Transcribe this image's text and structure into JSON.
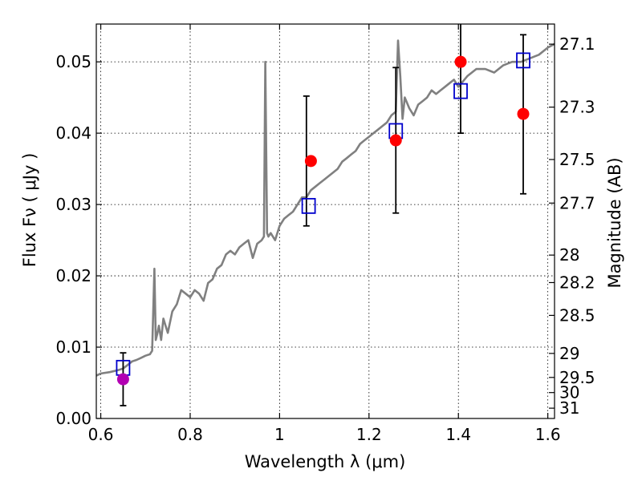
{
  "chart_data": {
    "type": "scatter",
    "title": "",
    "xlabel": "Wavelength  λ (μm)",
    "ylabel": "Flux  Fν  ( μJy )",
    "ylabel_right": "Magnitude (AB)",
    "xlim": [
      0.59,
      1.615
    ],
    "ylim": [
      0.0,
      0.0553
    ],
    "x_ticks": [
      0.6,
      0.8,
      1.0,
      1.2,
      1.4,
      1.6
    ],
    "x_tick_labels": [
      "0.6",
      "0.8",
      "1",
      "1.2",
      "1.4",
      "1.6"
    ],
    "y_ticks": [
      0.0,
      0.01,
      0.02,
      0.03,
      0.04,
      0.05
    ],
    "y_tick_labels": [
      "0.00",
      "0.01",
      "0.02",
      "0.03",
      "0.04",
      "0.05"
    ],
    "mag_ticks": [
      {
        "value": 27.1,
        "label": "27.1"
      },
      {
        "value": 27.3,
        "label": "27.3"
      },
      {
        "value": 27.5,
        "label": "27.5"
      },
      {
        "value": 27.7,
        "label": "27.7"
      },
      {
        "value": 28.0,
        "label": "28"
      },
      {
        "value": 28.2,
        "label": "28.2"
      },
      {
        "value": 28.5,
        "label": "28.5"
      },
      {
        "value": 29.0,
        "label": "29"
      },
      {
        "value": 29.5,
        "label": "29.5"
      },
      {
        "value": 30.0,
        "label": "30"
      },
      {
        "value": 31.0,
        "label": "31"
      }
    ],
    "grid": true,
    "colors": {
      "model": "#808080",
      "observed": "#ff0000",
      "observed_short": "#b300b3",
      "model_box": "#0000cc",
      "errorbar": "#000000"
    },
    "series": [
      {
        "kind": "line",
        "x": [
          0.59,
          0.6,
          0.62,
          0.64,
          0.65,
          0.66,
          0.67,
          0.68,
          0.69,
          0.7,
          0.71,
          0.715,
          0.72,
          0.723,
          0.727,
          0.73,
          0.735,
          0.74,
          0.745,
          0.75,
          0.76,
          0.77,
          0.78,
          0.79,
          0.8,
          0.81,
          0.82,
          0.83,
          0.84,
          0.85,
          0.86,
          0.87,
          0.88,
          0.89,
          0.9,
          0.91,
          0.92,
          0.93,
          0.94,
          0.95,
          0.96,
          0.965,
          0.968,
          0.972,
          0.975,
          0.98,
          0.99,
          1.0,
          1.01,
          1.02,
          1.03,
          1.04,
          1.05,
          1.06,
          1.07,
          1.08,
          1.09,
          1.1,
          1.11,
          1.12,
          1.13,
          1.14,
          1.15,
          1.16,
          1.17,
          1.18,
          1.19,
          1.2,
          1.21,
          1.22,
          1.23,
          1.24,
          1.25,
          1.26,
          1.265,
          1.27,
          1.275,
          1.28,
          1.29,
          1.3,
          1.31,
          1.32,
          1.33,
          1.34,
          1.35,
          1.36,
          1.37,
          1.38,
          1.39,
          1.4,
          1.42,
          1.44,
          1.46,
          1.48,
          1.5,
          1.52,
          1.54,
          1.56,
          1.58,
          1.6,
          1.615
        ],
        "y": [
          0.006,
          0.0063,
          0.0065,
          0.0068,
          0.007,
          0.0075,
          0.008,
          0.0082,
          0.0085,
          0.0088,
          0.009,
          0.0095,
          0.021,
          0.011,
          0.012,
          0.013,
          0.011,
          0.014,
          0.013,
          0.012,
          0.015,
          0.016,
          0.018,
          0.0175,
          0.017,
          0.018,
          0.0175,
          0.0165,
          0.019,
          0.0195,
          0.021,
          0.0215,
          0.023,
          0.0235,
          0.023,
          0.024,
          0.0245,
          0.025,
          0.0225,
          0.0245,
          0.025,
          0.0255,
          0.05,
          0.026,
          0.0255,
          0.026,
          0.025,
          0.027,
          0.028,
          0.0285,
          0.029,
          0.03,
          0.031,
          0.031,
          0.032,
          0.0325,
          0.033,
          0.0335,
          0.034,
          0.0345,
          0.035,
          0.036,
          0.0365,
          0.037,
          0.0375,
          0.0385,
          0.039,
          0.0395,
          0.04,
          0.0405,
          0.041,
          0.0415,
          0.0425,
          0.043,
          0.053,
          0.048,
          0.042,
          0.045,
          0.0435,
          0.0425,
          0.044,
          0.0445,
          0.045,
          0.046,
          0.0455,
          0.046,
          0.0465,
          0.047,
          0.0475,
          0.0465,
          0.048,
          0.049,
          0.049,
          0.0485,
          0.0495,
          0.05,
          0.05,
          0.0505,
          0.051,
          0.052,
          0.0525
        ]
      },
      {
        "kind": "errorbar",
        "x": [
          0.65,
          1.06,
          1.26,
          1.405,
          1.545
        ],
        "y": [
          0.0055,
          0.036,
          0.039,
          0.05,
          0.0427
        ],
        "yerr_low": [
          0.0018,
          0.027,
          0.0288,
          0.04,
          0.0315
        ],
        "yerr_high": [
          0.0092,
          0.0452,
          0.0492,
          0.0555,
          0.0538
        ]
      },
      {
        "kind": "model_points",
        "x": [
          0.65,
          1.065,
          1.26,
          1.405,
          1.545
        ],
        "y": [
          0.0071,
          0.0298,
          0.0403,
          0.0459,
          0.0502
        ]
      },
      {
        "kind": "observed_points",
        "x": [
          0.65,
          1.07,
          1.26,
          1.405,
          1.545
        ],
        "y": [
          0.0055,
          0.0361,
          0.039,
          0.05,
          0.0427
        ],
        "color_keys": [
          "observed_short",
          "observed",
          "observed",
          "observed",
          "observed"
        ]
      }
    ]
  }
}
